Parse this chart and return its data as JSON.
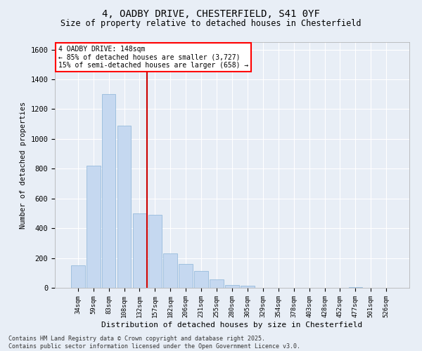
{
  "title1": "4, OADBY DRIVE, CHESTERFIELD, S41 0YF",
  "title2": "Size of property relative to detached houses in Chesterfield",
  "xlabel": "Distribution of detached houses by size in Chesterfield",
  "ylabel": "Number of detached properties",
  "categories": [
    "34sqm",
    "59sqm",
    "83sqm",
    "108sqm",
    "132sqm",
    "157sqm",
    "182sqm",
    "206sqm",
    "231sqm",
    "255sqm",
    "280sqm",
    "305sqm",
    "329sqm",
    "354sqm",
    "378sqm",
    "403sqm",
    "428sqm",
    "452sqm",
    "477sqm",
    "501sqm",
    "526sqm"
  ],
  "values": [
    150,
    820,
    1300,
    1090,
    500,
    490,
    230,
    160,
    115,
    55,
    20,
    15,
    2,
    0,
    0,
    0,
    0,
    0,
    5,
    0,
    0
  ],
  "bar_color": "#c5d8f0",
  "bar_edge_color": "#8ab4d8",
  "vline_color": "#cc0000",
  "vline_pos": 4.5,
  "annotation_title": "4 OADBY DRIVE: 148sqm",
  "annotation_line2": "← 85% of detached houses are smaller (3,727)",
  "annotation_line3": "15% of semi-detached houses are larger (658) →",
  "ylim": [
    0,
    1650
  ],
  "yticks": [
    0,
    200,
    400,
    600,
    800,
    1000,
    1200,
    1400,
    1600
  ],
  "footer": "Contains HM Land Registry data © Crown copyright and database right 2025.\nContains public sector information licensed under the Open Government Licence v3.0.",
  "bg_color": "#e8eef6"
}
